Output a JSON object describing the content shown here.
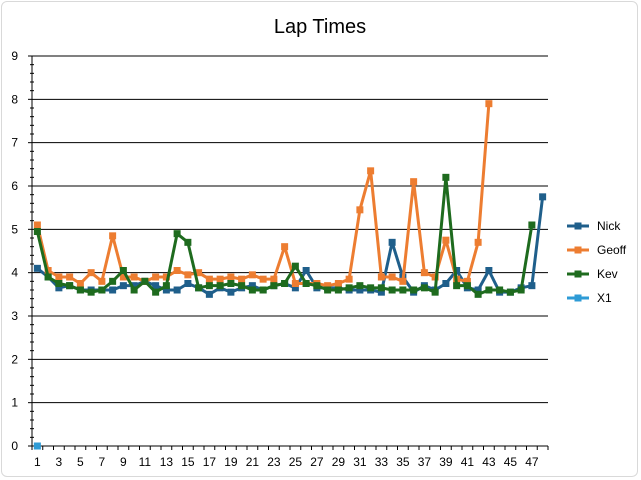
{
  "chart_data": {
    "type": "line",
    "title": "Lap Times",
    "xlabel": "",
    "ylabel": "",
    "ylim": [
      0,
      9
    ],
    "x": [
      1,
      2,
      3,
      4,
      5,
      6,
      7,
      8,
      9,
      10,
      11,
      12,
      13,
      14,
      15,
      16,
      17,
      18,
      19,
      20,
      21,
      22,
      23,
      24,
      25,
      26,
      27,
      28,
      29,
      30,
      31,
      32,
      33,
      34,
      35,
      36,
      37,
      38,
      39,
      40,
      41,
      42,
      43,
      44,
      45,
      46,
      47,
      48
    ],
    "x_tick_labels": [
      "1",
      "3",
      "5",
      "7",
      "9",
      "11",
      "13",
      "15",
      "17",
      "19",
      "21",
      "23",
      "25",
      "27",
      "29",
      "31",
      "33",
      "35",
      "37",
      "39",
      "41",
      "43",
      "45",
      "47"
    ],
    "y_ticks": [
      0,
      1,
      2,
      3,
      4,
      5,
      6,
      7,
      8,
      9
    ],
    "grid": true,
    "legend": "right",
    "series": [
      {
        "name": "Nick",
        "color": "#1f5f8b",
        "values": [
          4.1,
          3.9,
          3.65,
          3.7,
          3.6,
          3.6,
          3.6,
          3.6,
          3.7,
          3.7,
          3.8,
          3.7,
          3.6,
          3.6,
          3.75,
          3.65,
          3.5,
          3.65,
          3.55,
          3.65,
          3.7,
          3.6,
          3.7,
          3.75,
          3.65,
          4.05,
          3.65,
          3.65,
          3.65,
          3.6,
          3.6,
          3.6,
          3.55,
          4.7,
          3.9,
          3.55,
          3.7,
          3.6,
          3.75,
          4.05,
          3.65,
          3.6,
          4.05,
          3.55,
          3.55,
          3.65,
          3.7,
          5.75
        ]
      },
      {
        "name": "Geoff",
        "color": "#ed7d31",
        "values": [
          5.1,
          4.05,
          3.9,
          3.9,
          3.75,
          4.0,
          3.8,
          4.85,
          3.9,
          3.9,
          3.8,
          3.9,
          3.9,
          4.05,
          3.95,
          4.0,
          3.85,
          3.85,
          3.9,
          3.85,
          3.95,
          3.85,
          3.85,
          4.6,
          3.75,
          3.75,
          3.75,
          3.7,
          3.75,
          3.85,
          5.45,
          6.35,
          3.9,
          3.9,
          3.8,
          6.1,
          4.0,
          3.9,
          4.75,
          3.85,
          3.8,
          4.7,
          7.9,
          null,
          null,
          null,
          null,
          null
        ]
      },
      {
        "name": "Kev",
        "color": "#1e6b1e",
        "values": [
          4.95,
          3.9,
          3.75,
          3.7,
          3.6,
          3.55,
          3.6,
          3.8,
          4.05,
          3.6,
          3.8,
          3.55,
          3.7,
          4.9,
          4.7,
          3.65,
          3.7,
          3.7,
          3.75,
          3.7,
          3.6,
          3.6,
          3.7,
          3.75,
          4.15,
          3.75,
          3.7,
          3.6,
          3.6,
          3.65,
          3.7,
          3.65,
          3.65,
          3.6,
          3.6,
          3.6,
          3.65,
          3.55,
          6.2,
          3.7,
          3.7,
          3.5,
          3.6,
          3.6,
          3.55,
          3.6,
          5.1,
          null
        ]
      },
      {
        "name": "X1",
        "color": "#2e9bd6",
        "values": [
          0,
          null,
          null,
          null,
          null,
          null,
          null,
          null,
          null,
          null,
          null,
          null,
          null,
          null,
          null,
          null,
          null,
          null,
          null,
          null,
          null,
          null,
          null,
          null,
          null,
          null,
          null,
          null,
          null,
          null,
          null,
          null,
          null,
          null,
          null,
          null,
          null,
          null,
          null,
          null,
          null,
          null,
          null,
          null,
          null,
          null,
          null,
          null
        ]
      }
    ]
  }
}
